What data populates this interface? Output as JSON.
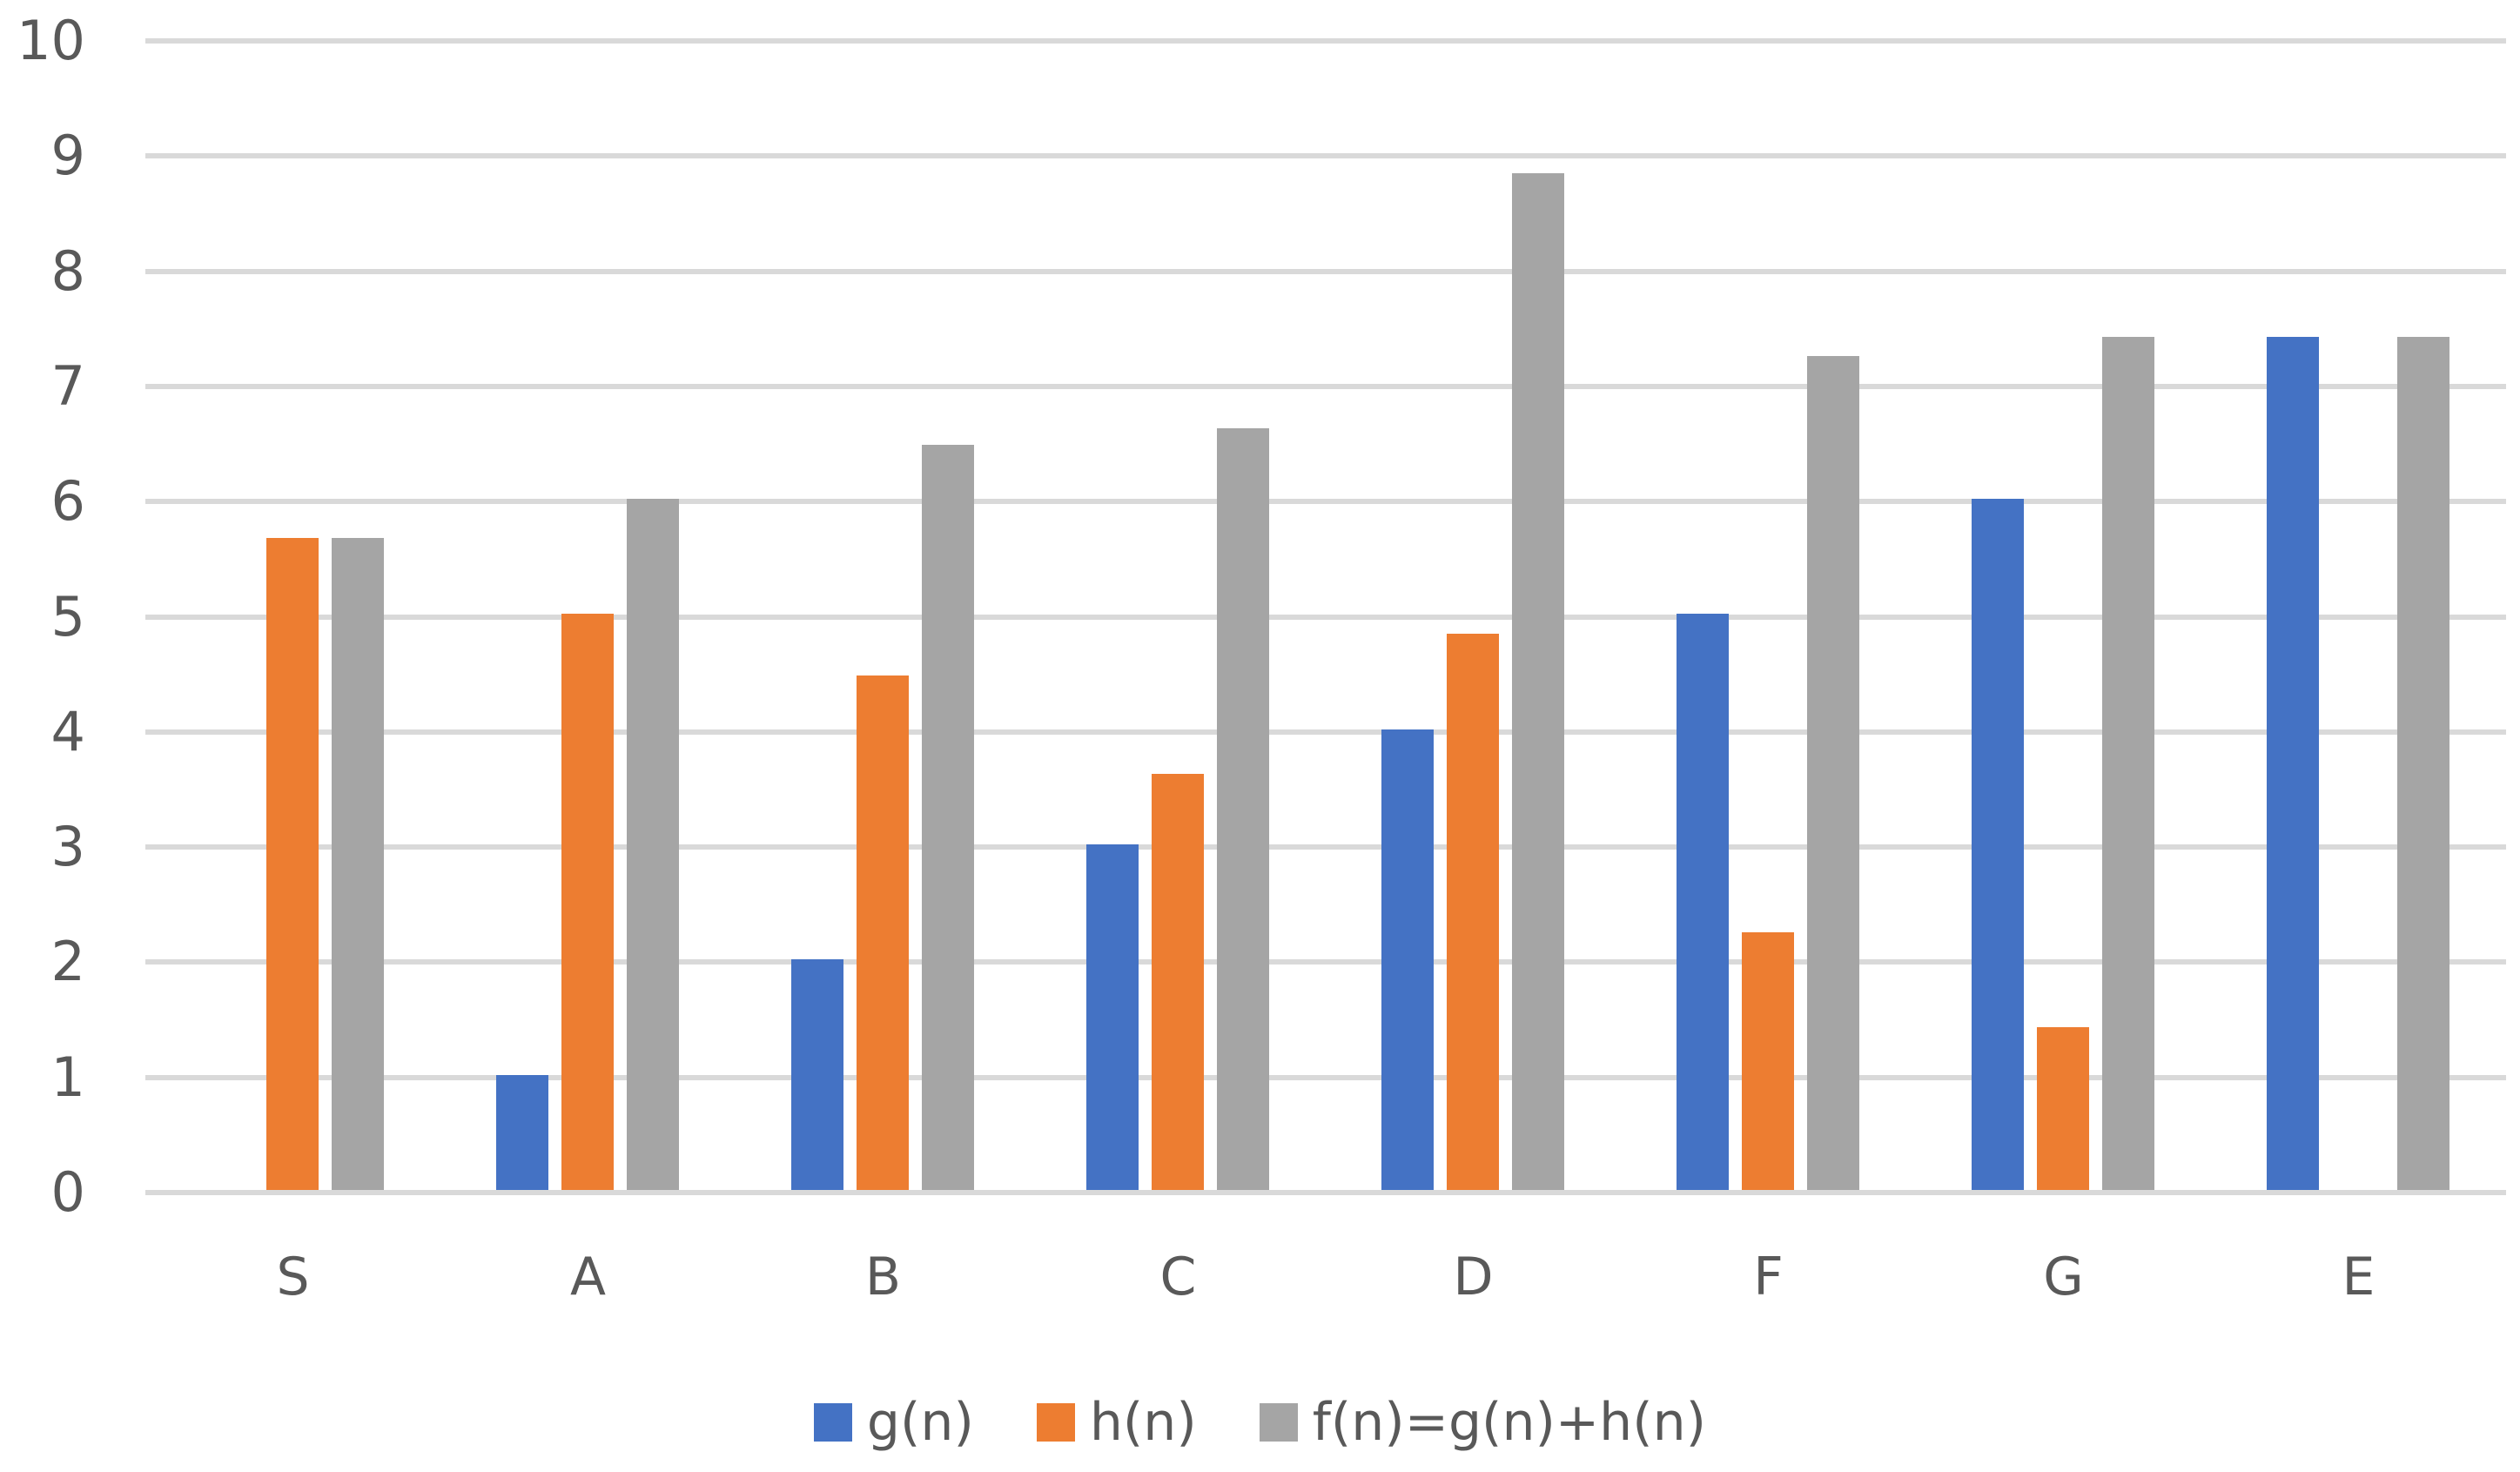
{
  "chart_data": {
    "type": "bar",
    "title": "",
    "xlabel": "",
    "ylabel": "",
    "categories": [
      "S",
      "A",
      "B",
      "C",
      "D",
      "F",
      "G",
      "E"
    ],
    "series": [
      {
        "key": "g",
        "name": "g(n)",
        "color": "#4472C4",
        "values": [
          0,
          1,
          2,
          3,
          4,
          5,
          6,
          7.41
        ]
      },
      {
        "key": "h",
        "name": "h(n)",
        "color": "#ED7D31",
        "values": [
          5.66,
          5,
          4.47,
          3.61,
          4.83,
          2.24,
          1.41,
          0
        ]
      },
      {
        "key": "f",
        "name": "f(n)=g(n)+h(n)",
        "color": "#A5A5A5",
        "values": [
          5.66,
          6,
          6.47,
          6.61,
          8.83,
          7.24,
          7.41,
          7.41
        ]
      }
    ],
    "ylim": [
      0,
      10
    ],
    "yticks": [
      0,
      1,
      2,
      3,
      4,
      5,
      6,
      7,
      8,
      9,
      10
    ],
    "grid": true,
    "legend_position": "bottom",
    "colors": {
      "gridline": "#D9D9D9",
      "text": "#595959",
      "background": "#FFFFFF"
    }
  }
}
